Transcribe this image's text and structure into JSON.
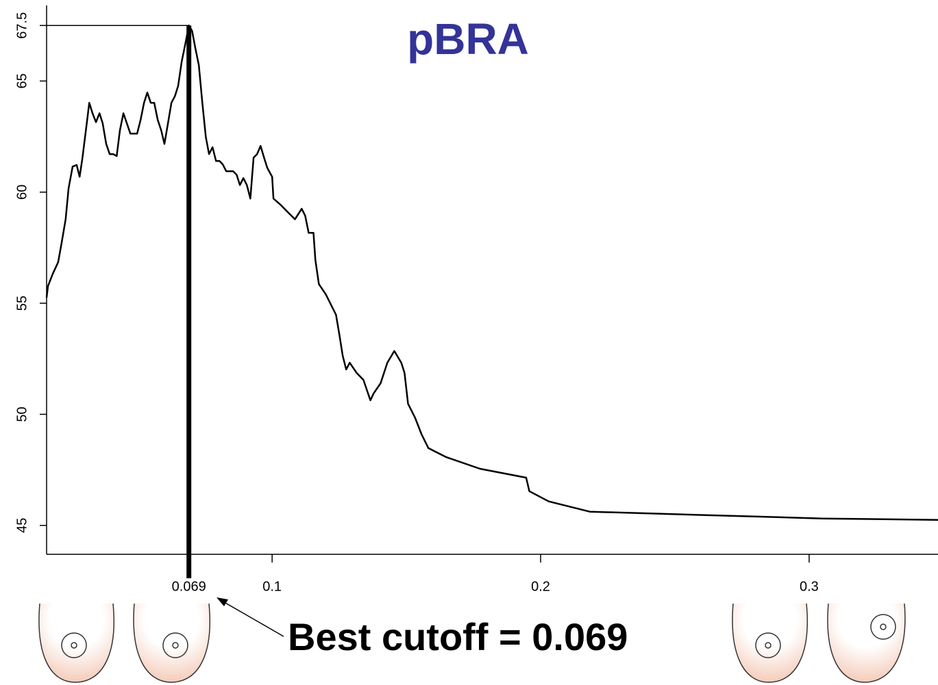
{
  "chart_data": {
    "type": "line",
    "title": "pBRA",
    "title_color": "#333399",
    "annotation": "Best cutoff = 0.069",
    "best_cutoff": {
      "x": 0.069,
      "y": 67.5
    },
    "xlim": [
      0.016,
      0.348
    ],
    "ylim": [
      43.7,
      68.4
    ],
    "xticks": [
      0.069,
      0.1,
      0.2,
      0.3
    ],
    "yticks": [
      45,
      50,
      55,
      60,
      65,
      67.5
    ],
    "series": [
      {
        "color": "#000000",
        "x": [
          0.016,
          0.0165,
          0.0183,
          0.0203,
          0.0216,
          0.0231,
          0.0242,
          0.0257,
          0.0272,
          0.0283,
          0.0293,
          0.0308,
          0.0319,
          0.0331,
          0.0344,
          0.0357,
          0.0369,
          0.0382,
          0.0395,
          0.0408,
          0.0421,
          0.0433,
          0.0446,
          0.0459,
          0.0472,
          0.0497,
          0.051,
          0.0523,
          0.0535,
          0.0548,
          0.0561,
          0.0574,
          0.0587,
          0.0599,
          0.0612,
          0.0625,
          0.0638,
          0.065,
          0.0663,
          0.0676,
          0.0686,
          0.069,
          0.0702,
          0.0714,
          0.0727,
          0.074,
          0.0753,
          0.0765,
          0.0778,
          0.0791,
          0.0804,
          0.0816,
          0.0829,
          0.0842,
          0.0855,
          0.0868,
          0.088,
          0.0893,
          0.0906,
          0.0919,
          0.0931,
          0.0944,
          0.0957,
          0.097,
          0.0982,
          0.1,
          0.1005,
          0.1034,
          0.1059,
          0.1085,
          0.111,
          0.1123,
          0.1136,
          0.1154,
          0.1161,
          0.1174,
          0.12,
          0.1238,
          0.1251,
          0.1263,
          0.1276,
          0.1289,
          0.1315,
          0.134,
          0.1366,
          0.1378,
          0.1404,
          0.1429,
          0.1455,
          0.1481,
          0.1493,
          0.1506,
          0.1532,
          0.1557,
          0.1582,
          0.1647,
          0.1774,
          0.1946,
          0.1958,
          0.203,
          0.2183,
          0.2541,
          0.2796,
          0.3051,
          0.348
        ],
        "values": [
          55.25,
          55.77,
          56.32,
          56.85,
          57.71,
          58.78,
          60.17,
          61.15,
          61.22,
          60.69,
          61.49,
          62.94,
          64.02,
          63.55,
          63.15,
          63.55,
          63.09,
          62.17,
          61.71,
          61.71,
          61.62,
          62.78,
          63.55,
          63.09,
          62.63,
          62.63,
          63.25,
          64.02,
          64.48,
          64.02,
          64.02,
          63.25,
          62.78,
          62.17,
          63.09,
          64.02,
          64.32,
          64.78,
          65.86,
          66.63,
          67.25,
          67.5,
          67.25,
          66.48,
          65.71,
          64.02,
          62.48,
          61.71,
          62.02,
          61.4,
          61.4,
          61.25,
          60.94,
          60.94,
          60.94,
          60.78,
          60.32,
          60.63,
          60.32,
          59.71,
          61.55,
          61.71,
          62.08,
          61.55,
          61.09,
          60.69,
          59.71,
          59.4,
          59.09,
          58.78,
          59.25,
          58.94,
          58.17,
          58.17,
          56.94,
          55.86,
          55.4,
          54.48,
          53.55,
          52.63,
          52.02,
          52.32,
          51.86,
          51.55,
          50.63,
          50.94,
          51.4,
          52.32,
          52.85,
          52.32,
          51.86,
          50.48,
          49.86,
          49.09,
          48.48,
          48.08,
          47.55,
          47.15,
          46.54,
          46.08,
          45.62,
          45.49,
          45.4,
          45.31,
          45.25
        ]
      }
    ]
  }
}
